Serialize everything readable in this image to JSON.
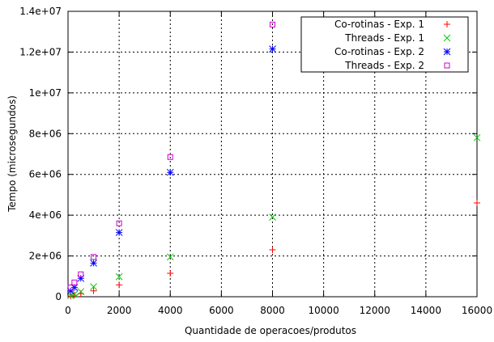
{
  "chart_data": {
    "type": "scatter",
    "title": "",
    "xlabel": "Quantidade de operacoes/produtos",
    "ylabel": "Tempo (microsegundos)",
    "xlim": [
      0,
      16000
    ],
    "ylim": [
      0,
      14000000
    ],
    "grid": true,
    "legend_position": "top-right",
    "x_ticks": [
      {
        "value": 0,
        "label": "0"
      },
      {
        "value": 2000,
        "label": "2000"
      },
      {
        "value": 4000,
        "label": "4000"
      },
      {
        "value": 6000,
        "label": "6000"
      },
      {
        "value": 8000,
        "label": "8000"
      },
      {
        "value": 10000,
        "label": "10000"
      },
      {
        "value": 12000,
        "label": "12000"
      },
      {
        "value": 14000,
        "label": "14000"
      },
      {
        "value": 16000,
        "label": "16000"
      }
    ],
    "y_ticks": [
      {
        "value": 0,
        "label": "0"
      },
      {
        "value": 2000000,
        "label": "2e+06"
      },
      {
        "value": 4000000,
        "label": "4e+06"
      },
      {
        "value": 6000000,
        "label": "6e+06"
      },
      {
        "value": 8000000,
        "label": "8e+06"
      },
      {
        "value": 10000000,
        "label": "1e+07"
      },
      {
        "value": 12000000,
        "label": "1.2e+07"
      },
      {
        "value": 14000000,
        "label": "1.4e+07"
      }
    ],
    "series": [
      {
        "name": "Co-rotinas - Exp. 1",
        "marker": "plus",
        "color": "#ff0000",
        "points": [
          [
            100,
            30000
          ],
          [
            250,
            80000
          ],
          [
            500,
            150000
          ],
          [
            1000,
            290000
          ],
          [
            2000,
            580000
          ],
          [
            4000,
            1150000
          ],
          [
            8000,
            2300000
          ],
          [
            16000,
            4600000
          ]
        ]
      },
      {
        "name": "Threads - Exp. 1",
        "marker": "cross",
        "color": "#00cc00",
        "points": [
          [
            100,
            60000
          ],
          [
            250,
            130000
          ],
          [
            500,
            250000
          ],
          [
            1000,
            490000
          ],
          [
            2000,
            980000
          ],
          [
            4000,
            1950000
          ],
          [
            8000,
            3900000
          ],
          [
            16000,
            7800000
          ]
        ]
      },
      {
        "name": "Co-rotinas - Exp. 2",
        "marker": "star",
        "color": "#0000ff",
        "points": [
          [
            100,
            280000
          ],
          [
            250,
            450000
          ],
          [
            500,
            900000
          ],
          [
            1000,
            1650000
          ],
          [
            2000,
            3150000
          ],
          [
            4000,
            6100000
          ],
          [
            8000,
            12150000
          ]
        ]
      },
      {
        "name": "Threads - Exp. 2",
        "marker": "square",
        "color": "#cc00cc",
        "points": [
          [
            100,
            450000
          ],
          [
            250,
            700000
          ],
          [
            500,
            1100000
          ],
          [
            1000,
            1950000
          ],
          [
            2000,
            3600000
          ],
          [
            4000,
            6850000
          ],
          [
            8000,
            13350000
          ]
        ]
      }
    ]
  }
}
